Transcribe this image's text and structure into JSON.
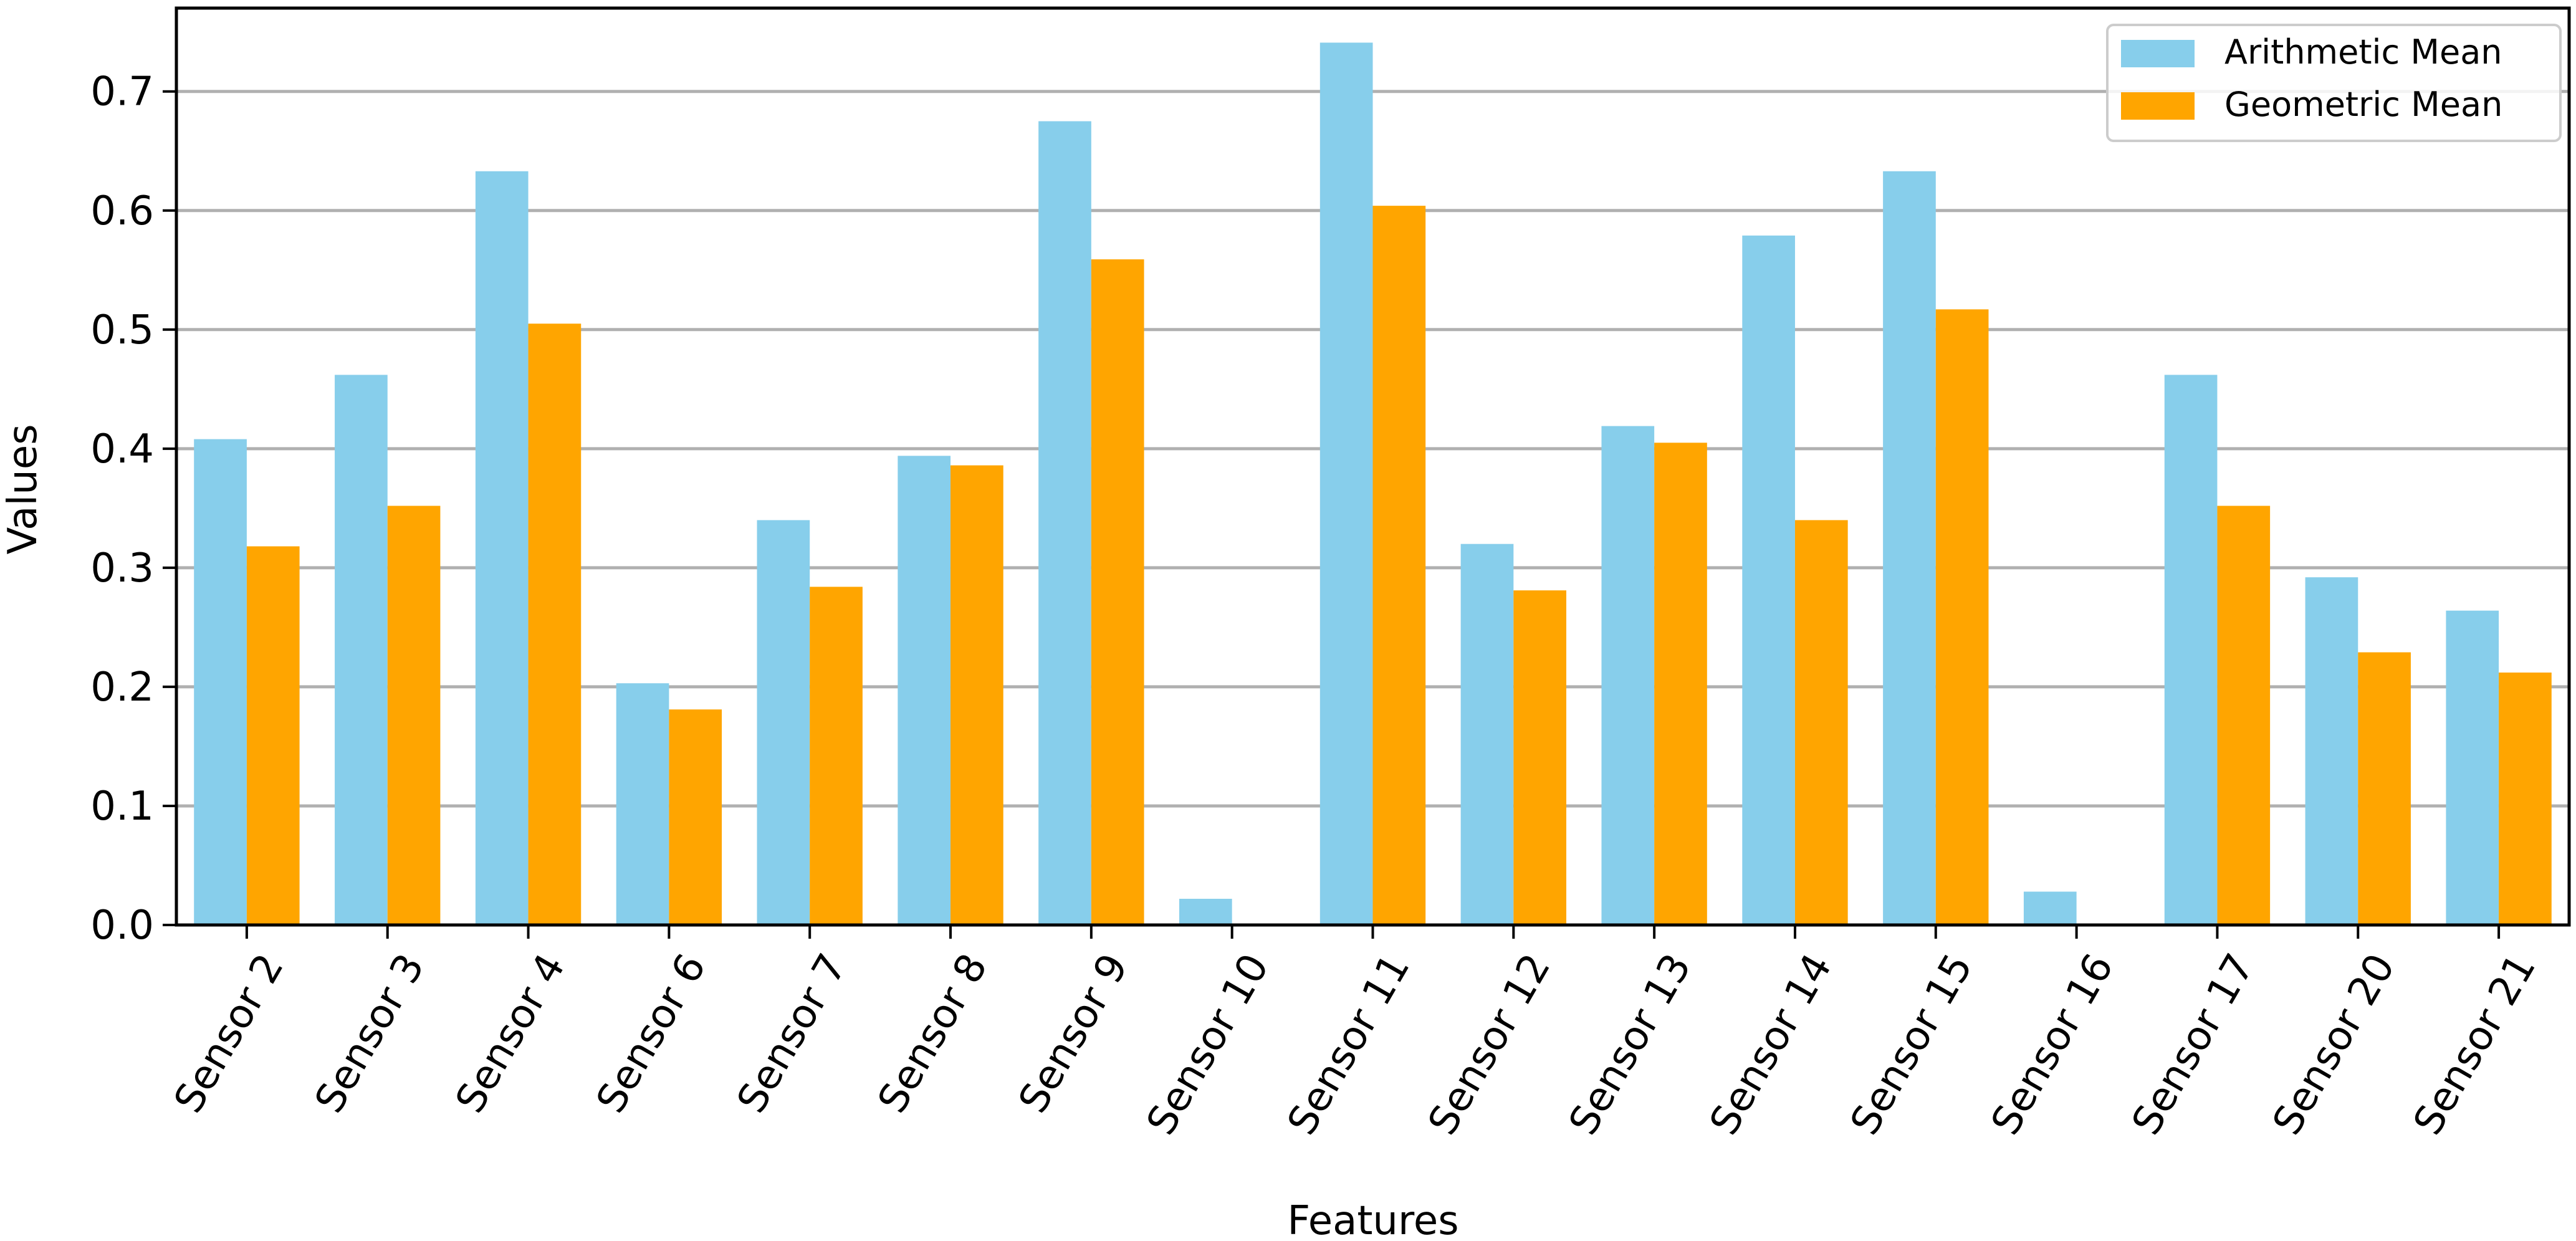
{
  "chart_data": {
    "type": "bar",
    "title": "",
    "xlabel": "Features",
    "ylabel": "Values",
    "ylim": [
      0,
      0.77
    ],
    "yticks": [
      0.0,
      0.1,
      0.2,
      0.3,
      0.4,
      0.5,
      0.6,
      0.7
    ],
    "ytick_labels": [
      "0.0",
      "0.1",
      "0.2",
      "0.3",
      "0.4",
      "0.5",
      "0.6",
      "0.7"
    ],
    "grid": "horizontal",
    "legend_position": "top-right",
    "categories": [
      "Sensor 2",
      "Sensor 3",
      "Sensor 4",
      "Sensor 6",
      "Sensor 7",
      "Sensor 8",
      "Sensor 9",
      "Sensor 10",
      "Sensor 11",
      "Sensor 12",
      "Sensor 13",
      "Sensor 14",
      "Sensor 15",
      "Sensor 16",
      "Sensor 17",
      "Sensor 20",
      "Sensor 21"
    ],
    "series": [
      {
        "name": "Arithmetic Mean",
        "color": "#87ceeb",
        "values": [
          0.408,
          0.462,
          0.633,
          0.203,
          0.34,
          0.394,
          0.675,
          0.022,
          0.741,
          0.32,
          0.419,
          0.579,
          0.633,
          0.028,
          0.462,
          0.292,
          0.264
        ]
      },
      {
        "name": "Geometric Mean",
        "color": "#ffa500",
        "values": [
          0.318,
          0.352,
          0.505,
          0.181,
          0.284,
          0.386,
          0.559,
          0.0,
          0.604,
          0.281,
          0.405,
          0.34,
          0.517,
          0.0,
          0.352,
          0.229,
          0.212
        ]
      }
    ]
  }
}
